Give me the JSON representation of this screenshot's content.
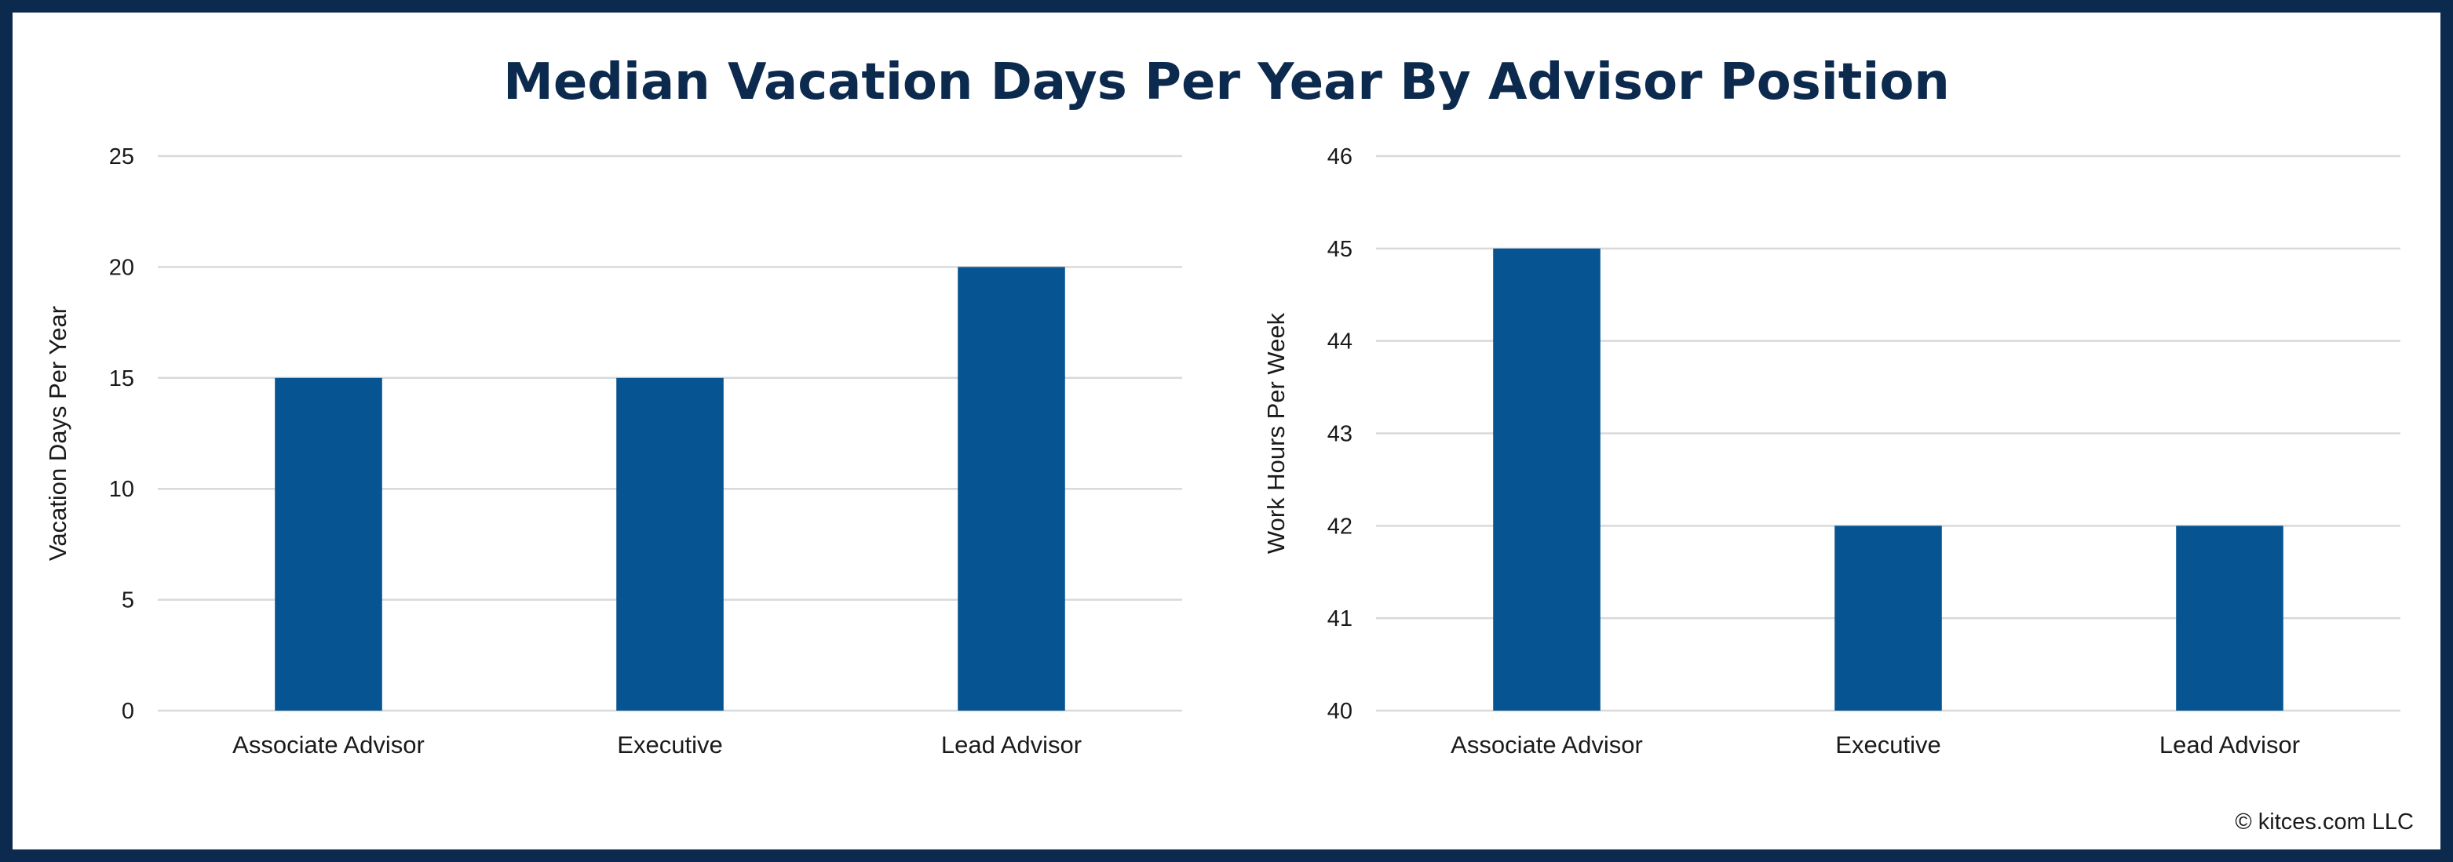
{
  "title": "Median Vacation Days Per Year By Advisor Position",
  "credit": "© kitces.com LLC",
  "colors": {
    "bar": "#065592",
    "frame": "#0c2a4e",
    "grid": "#d9d9d9",
    "title": "#0c2a4e"
  },
  "chart_data": [
    {
      "type": "bar",
      "categories": [
        "Associate Advisor",
        "Executive",
        "Lead Advisor"
      ],
      "values": [
        15,
        15,
        20
      ],
      "ylabel": "Vacation Days Per Year",
      "ylim": [
        0,
        25
      ],
      "yticks": [
        0,
        5,
        10,
        15,
        20,
        25
      ],
      "grid": true
    },
    {
      "type": "bar",
      "categories": [
        "Associate Advisor",
        "Executive",
        "Lead Advisor"
      ],
      "values": [
        45,
        42,
        42
      ],
      "ylabel": "Work Hours Per Week",
      "ylim": [
        40,
        46
      ],
      "yticks": [
        40,
        41,
        42,
        43,
        44,
        45,
        46
      ],
      "grid": true
    }
  ]
}
